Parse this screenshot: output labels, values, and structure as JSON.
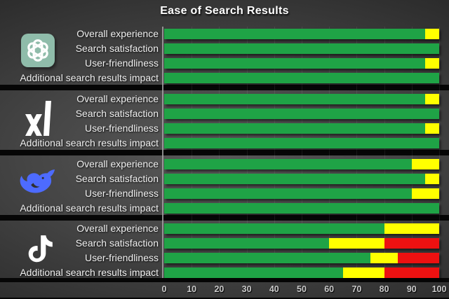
{
  "chart_data": {
    "type": "bar",
    "orientation": "horizontal",
    "stacked": true,
    "title": "Ease of Search Results",
    "xlabel": "",
    "ylabel": "",
    "xlim": [
      0,
      100
    ],
    "x_ticks": [
      "0",
      "10",
      "20",
      "30",
      "40",
      "50",
      "60",
      "70",
      "80",
      "90",
      "100"
    ],
    "grid": true,
    "legend": "none",
    "categories": [
      "Overall experience",
      "Search satisfaction",
      "User-friendliness",
      "Additional search results impact"
    ],
    "segment_names": [
      "green",
      "yellow",
      "red"
    ],
    "segment_colors": {
      "green": "#1FA346",
      "yellow": "#FFFF00",
      "red": "#ED1111"
    },
    "groups": [
      {
        "icon": "openai-chatgpt-icon",
        "values": [
          [
            95,
            5,
            0
          ],
          [
            100,
            0,
            0
          ],
          [
            95,
            5,
            0
          ],
          [
            100,
            0,
            0
          ]
        ]
      },
      {
        "icon": "xai-icon",
        "values": [
          [
            95,
            5,
            0
          ],
          [
            100,
            0,
            0
          ],
          [
            95,
            5,
            0
          ],
          [
            100,
            0,
            0
          ]
        ]
      },
      {
        "icon": "deepseek-icon",
        "values": [
          [
            90,
            10,
            0
          ],
          [
            95,
            5,
            0
          ],
          [
            90,
            10,
            0
          ],
          [
            100,
            0,
            0
          ]
        ]
      },
      {
        "icon": "tiktok-icon",
        "values": [
          [
            80,
            20,
            0
          ],
          [
            60,
            20,
            20
          ],
          [
            75,
            10,
            15
          ],
          [
            65,
            15,
            20
          ]
        ]
      }
    ]
  },
  "colors": {
    "background_center": "#595959",
    "background_edge": "#1b1b1b",
    "separator": "#060606",
    "title_text": "#FFFFFF",
    "label_text": "#F1F1F1",
    "tick_text": "#C9C9C9",
    "openai_badge": "#8FBCAA",
    "deepseek_blue": "#4D6BFE",
    "logo_white": "#FFFFFF"
  }
}
